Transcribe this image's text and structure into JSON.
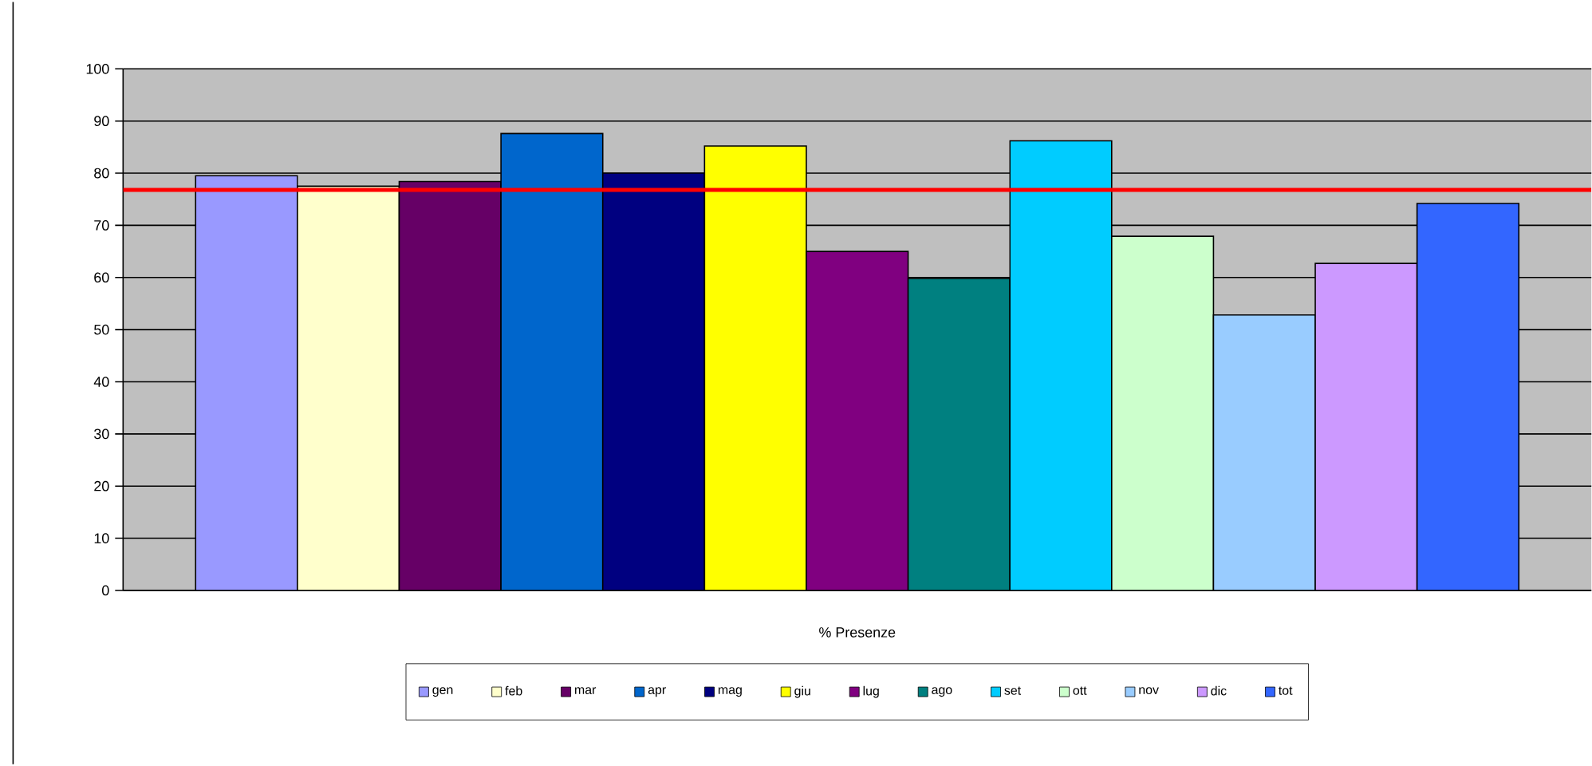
{
  "chart_data": {
    "type": "bar",
    "categories": [
      null
    ],
    "xlabel": "% Presenze",
    "series": [
      {
        "name": "gen",
        "color": "#9999ff",
        "values": [
          79.5
        ]
      },
      {
        "name": "feb",
        "color": "#ffffcc",
        "values": [
          77.5
        ]
      },
      {
        "name": "mar",
        "color": "#660066",
        "values": [
          78.4
        ]
      },
      {
        "name": "apr",
        "color": "#0066cc",
        "values": [
          87.6
        ]
      },
      {
        "name": "mag",
        "color": "#000080",
        "values": [
          80
        ]
      },
      {
        "name": "giu",
        "color": "#ffff00",
        "values": [
          85.2
        ]
      },
      {
        "name": "lug",
        "color": "#800080",
        "values": [
          65
        ]
      },
      {
        "name": "ago",
        "color": "#008080",
        "values": [
          59.8
        ]
      },
      {
        "name": "set",
        "color": "#00ccff",
        "values": [
          86.2
        ]
      },
      {
        "name": "ott",
        "color": "#ccffcc",
        "values": [
          67.9
        ]
      },
      {
        "name": "nov",
        "color": "#99ccff",
        "values": [
          52.8
        ]
      },
      {
        "name": "dic",
        "color": "#cc99ff",
        "values": [
          62.7
        ]
      },
      {
        "name": "tot",
        "color": "#3366ff",
        "values": [
          74.2
        ]
      }
    ],
    "ylim": [
      0,
      100
    ],
    "yticks": [
      0,
      10,
      20,
      30,
      40,
      50,
      60,
      70,
      80,
      90,
      100
    ],
    "grid": "y",
    "legend": "bottom",
    "ref_lines": [
      {
        "axis": "y",
        "value": 76.8,
        "color": "#ff0000"
      }
    ]
  }
}
